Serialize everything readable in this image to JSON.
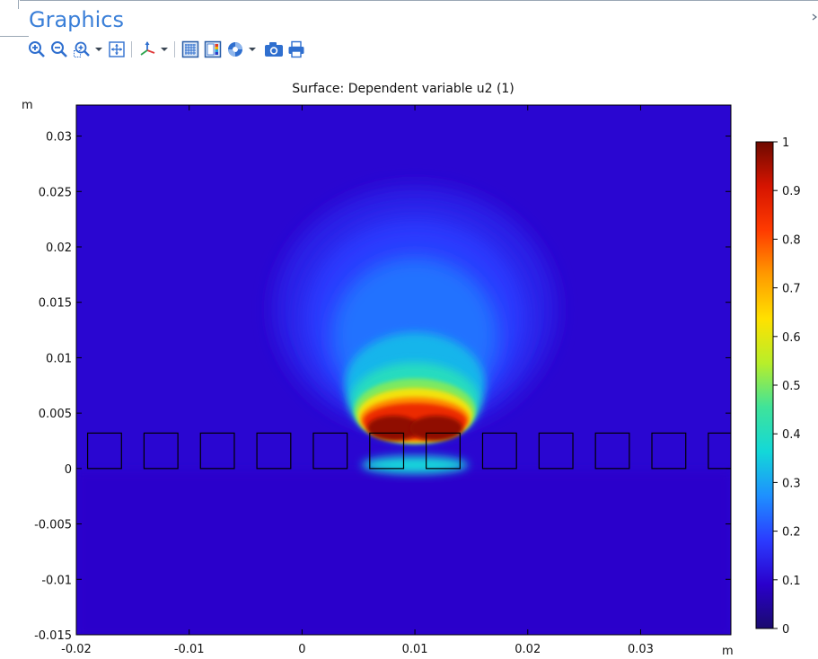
{
  "window": {
    "panel_title": "Graphics"
  },
  "toolbar": {
    "buttons": [
      {
        "name": "zoom-in-icon"
      },
      {
        "name": "zoom-out-icon"
      },
      {
        "name": "zoom-box-icon",
        "has_dropdown": true
      },
      {
        "name": "zoom-extents-icon"
      },
      {
        "name": "axis-orientation-icon",
        "has_dropdown": true
      },
      {
        "name": "grid-toggle-icon"
      },
      {
        "name": "legend-toggle-icon"
      },
      {
        "name": "scene-light-icon",
        "has_dropdown": true
      },
      {
        "name": "camera-snapshot-icon"
      },
      {
        "name": "print-icon"
      }
    ],
    "accent_color": "#2f6fcf"
  },
  "chart_data": {
    "type": "heatmap",
    "title": "Surface: Dependent variable u2 (1)",
    "xlabel": "m",
    "ylabel": "m",
    "xlim": [
      -0.02,
      0.038
    ],
    "ylim": [
      -0.015,
      0.0328
    ],
    "x_ticks": [
      {
        "value": -0.02,
        "label": "-0.02"
      },
      {
        "value": -0.01,
        "label": "-0.01"
      },
      {
        "value": 0,
        "label": "0"
      },
      {
        "value": 0.01,
        "label": "0.01"
      },
      {
        "value": 0.02,
        "label": "0.02"
      },
      {
        "value": 0.03,
        "label": "0.03"
      }
    ],
    "y_ticks": [
      {
        "value": 0.03,
        "label": "0.03"
      },
      {
        "value": 0.025,
        "label": "0.025"
      },
      {
        "value": 0.02,
        "label": "0.02"
      },
      {
        "value": 0.015,
        "label": "0.015"
      },
      {
        "value": 0.01,
        "label": "0.01"
      },
      {
        "value": 0.005,
        "label": "0.005"
      },
      {
        "value": 0,
        "label": "0"
      },
      {
        "value": -0.005,
        "label": "-0.005"
      },
      {
        "value": -0.01,
        "label": "-0.01"
      },
      {
        "value": -0.015,
        "label": "-0.015"
      }
    ],
    "colorbar": {
      "min": 0,
      "max": 1,
      "ticks": [
        {
          "value": 1,
          "label": "1"
        },
        {
          "value": 0.9,
          "label": "0.9"
        },
        {
          "value": 0.8,
          "label": "0.8"
        },
        {
          "value": 0.7,
          "label": "0.7"
        },
        {
          "value": 0.6,
          "label": "0.6"
        },
        {
          "value": 0.5,
          "label": "0.5"
        },
        {
          "value": 0.4,
          "label": "0.4"
        },
        {
          "value": 0.3,
          "label": "0.3"
        },
        {
          "value": 0.2,
          "label": "0.2"
        },
        {
          "value": 0.1,
          "label": "0.1"
        },
        {
          "value": 0,
          "label": "0"
        }
      ],
      "colormap": "rainbow",
      "stops": [
        "#1a0b6e",
        "#2a00cc",
        "#2b3cff",
        "#1e90ff",
        "#13d8d8",
        "#3fe39a",
        "#b8ee2a",
        "#ffe100",
        "#ff9a00",
        "#ff3b00",
        "#d61400",
        "#6e0a00"
      ]
    },
    "blocks": [
      {
        "x0": -0.019,
        "x1": -0.016,
        "y0": 0,
        "y1": 0.0032
      },
      {
        "x0": -0.014,
        "x1": -0.011,
        "y0": 0,
        "y1": 0.0032
      },
      {
        "x0": -0.009,
        "x1": -0.006,
        "y0": 0,
        "y1": 0.0032
      },
      {
        "x0": -0.004,
        "x1": -0.001,
        "y0": 0,
        "y1": 0.0032
      },
      {
        "x0": 0.001,
        "x1": 0.004,
        "y0": 0,
        "y1": 0.0032
      },
      {
        "x0": 0.006,
        "x1": 0.009,
        "y0": 0,
        "y1": 0.0032
      },
      {
        "x0": 0.011,
        "x1": 0.014,
        "y0": 0,
        "y1": 0.0032
      },
      {
        "x0": 0.016,
        "x1": 0.019,
        "y0": 0,
        "y1": 0.0032
      },
      {
        "x0": 0.021,
        "x1": 0.024,
        "y0": 0,
        "y1": 0.0032
      },
      {
        "x0": 0.026,
        "x1": 0.029,
        "y0": 0,
        "y1": 0.0032
      },
      {
        "x0": 0.031,
        "x1": 0.034,
        "y0": 0,
        "y1": 0.0032
      },
      {
        "x0": 0.036,
        "x1": 0.039,
        "y0": 0,
        "y1": 0.0032
      }
    ],
    "field": {
      "center_x": 0.01,
      "peak_value": 1.0,
      "background_value": 0.1,
      "plume_top_y": 0.025,
      "hot_zone_y": 0.0038,
      "hot_zone_half_width": 0.0045
    },
    "grid": false
  }
}
